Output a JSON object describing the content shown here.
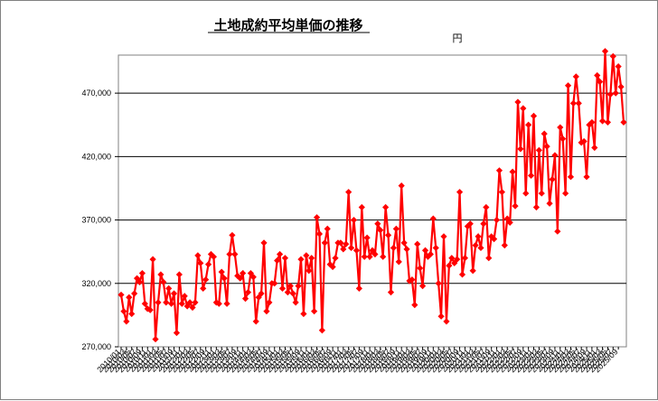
{
  "chart_data": {
    "type": "line",
    "title": "土地成約平均単価の推移",
    "unit_label": "円",
    "ylim": [
      270000,
      500000
    ],
    "y_ticks": [
      270000,
      320000,
      370000,
      420000,
      470000
    ],
    "y_tick_labels": [
      "270,000",
      "320,000",
      "370,000",
      "420,000",
      "470,000"
    ],
    "grid": true,
    "legend": "none",
    "series_color": "#ff0000",
    "x_tick_labels": [
      "2010/01",
      "2010/03",
      "2010/05",
      "2010/07",
      "2010/09",
      "2010/11",
      "2011/01",
      "2011/03",
      "2011/05",
      "2011/07",
      "2011/09",
      "2011/11",
      "2012/01",
      "2012/03",
      "2012/05",
      "2012/07",
      "2012/09",
      "2012/11",
      "2013/01",
      "2013/03",
      "2013/05",
      "2013/07",
      "2013/09",
      "2013/11",
      "2014/01",
      "2014/03",
      "2014/05",
      "2014/07",
      "2014/09",
      "2014/11",
      "2015/01",
      "2015/03",
      "2015/05",
      "2015/07",
      "2015/09",
      "2015/11",
      "2016/01",
      "2016/03",
      "2016/05",
      "2016/07",
      "2016/09",
      "2016/11",
      "2017/01",
      "2017/03",
      "2017/05",
      "2017/07",
      "2017/09",
      "2017/11",
      "2018/01",
      "2018/03",
      "2018/05",
      "2018/07",
      "2018/09",
      "2018/11",
      "2019/01",
      "2019/03",
      "2019/05",
      "2019/07",
      "2019/09",
      "2019/11",
      "2020/01",
      "2020/03",
      "2020/05",
      "2020/07",
      "2020/09",
      "2020/11",
      "2021/01",
      "2021/03",
      "2021/05",
      "2021/07",
      "2021/09",
      "2021/11",
      "2022/01",
      "2022/03",
      "2022/05",
      "2022/07",
      "2022/09",
      "2022/11",
      "2023/01",
      "2023/03",
      "2023/05",
      "2023/07",
      "2023/09",
      "2023/11",
      "2024/01",
      "2024/03",
      "2024/05",
      "2024/07",
      "2024/09",
      "2024/11",
      "2025/01",
      "2025/03",
      "2025/05",
      "2025/07",
      "2025/09"
    ],
    "values": [
      311000,
      298000,
      290000,
      309000,
      296000,
      312000,
      324000,
      321000,
      328000,
      304000,
      300000,
      299000,
      339000,
      276000,
      305000,
      327000,
      321000,
      305000,
      316000,
      304000,
      312000,
      281000,
      327000,
      304000,
      310000,
      302000,
      305000,
      301000,
      305000,
      342000,
      336000,
      316000,
      323000,
      335000,
      343000,
      341000,
      305000,
      304000,
      329000,
      324000,
      304000,
      343000,
      358000,
      343000,
      326000,
      324000,
      328000,
      308000,
      313000,
      328000,
      325000,
      290000,
      309000,
      312000,
      352000,
      298000,
      305000,
      320000,
      320000,
      338000,
      343000,
      316000,
      340000,
      313000,
      318000,
      312000,
      305000,
      318000,
      339000,
      296000,
      342000,
      330000,
      340000,
      298000,
      372000,
      359000,
      283000,
      352000,
      363000,
      335000,
      333000,
      340000,
      352000,
      352000,
      347000,
      351000,
      392000,
      348000,
      370000,
      346000,
      316000,
      380000,
      341000,
      356000,
      341000,
      346000,
      343000,
      367000,
      362000,
      341000,
      380000,
      358000,
      313000,
      348000,
      363000,
      337000,
      397000,
      352000,
      347000,
      322000,
      323000,
      303000,
      351000,
      332000,
      318000,
      346000,
      341000,
      343000,
      371000,
      348000,
      320000,
      294000,
      357000,
      290000,
      334000,
      340000,
      336000,
      339000,
      392000,
      327000,
      340000,
      365000,
      367000,
      330000,
      350000,
      357000,
      348000,
      367000,
      380000,
      340000,
      357000,
      355000,
      370000,
      409000,
      392000,
      350000,
      371000,
      368000,
      408000,
      381000,
      463000,
      426000,
      458000,
      391000,
      445000,
      405000,
      452000,
      380000,
      425000,
      391000,
      438000,
      428000,
      383000,
      402000,
      421000,
      361000,
      443000,
      434000,
      391000,
      476000,
      404000,
      462000,
      483000,
      462000,
      431000,
      432000,
      404000,
      445000,
      447000,
      427000,
      484000,
      479000,
      448000,
      503000,
      447000,
      469000,
      499000,
      470000,
      491000,
      475000,
      447000
    ]
  }
}
